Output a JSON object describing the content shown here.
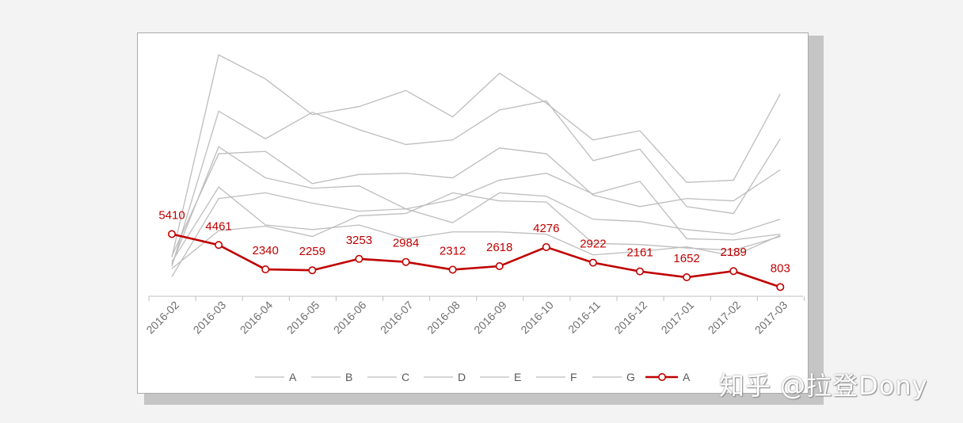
{
  "chart_data": {
    "type": "line",
    "categories": [
      "2016-02",
      "2016-03",
      "2016-04",
      "2016-05",
      "2016-06",
      "2016-07",
      "2016-08",
      "2016-09",
      "2016-10",
      "2016-11",
      "2016-12",
      "2017-01",
      "2017-02",
      "2017-03"
    ],
    "ylim": [
      0,
      21500
    ],
    "grid": false,
    "legend_position": "bottom",
    "background_series": [
      {
        "name": "A",
        "color": "#bdbdbd",
        "values": [
          3400,
          21000,
          18900,
          15800,
          16500,
          17900,
          15600,
          19400,
          16800,
          13600,
          14400,
          9900,
          10100,
          17600
        ]
      },
      {
        "name": "B",
        "color": "#bdbdbd",
        "values": [
          2600,
          16100,
          13700,
          16000,
          14500,
          13200,
          13600,
          16200,
          17000,
          11800,
          12800,
          7800,
          7200,
          13700
        ]
      },
      {
        "name": "C",
        "color": "#bdbdbd",
        "values": [
          3500,
          12400,
          12600,
          9800,
          10600,
          10700,
          10300,
          12900,
          12400,
          8800,
          7800,
          8500,
          8300,
          11000
        ]
      },
      {
        "name": "D",
        "color": "#bdbdbd",
        "values": [
          2800,
          13000,
          10300,
          9400,
          9600,
          7600,
          6400,
          9000,
          8700,
          6700,
          6500,
          5800,
          5400,
          6700
        ]
      },
      {
        "name": "E",
        "color": "#bdbdbd",
        "values": [
          1700,
          8500,
          9000,
          8100,
          7400,
          7600,
          8400,
          10100,
          10700,
          8900,
          10000,
          5000,
          4900,
          5400
        ]
      },
      {
        "name": "F",
        "color": "#bdbdbd",
        "values": [
          2400,
          5700,
          6100,
          5200,
          7000,
          7200,
          9000,
          8300,
          8200,
          4600,
          4500,
          4200,
          4000,
          5200
        ]
      },
      {
        "name": "G",
        "color": "#bdbdbd",
        "values": [
          3000,
          9500,
          6200,
          5800,
          6200,
          5000,
          5600,
          5600,
          5400,
          3600,
          3900,
          4300,
          3500,
          5300
        ]
      }
    ],
    "highlight_series": {
      "name": "A",
      "color": "#c00000",
      "values": [
        5410,
        4461,
        2340,
        2259,
        3253,
        2984,
        2312,
        2618,
        4276,
        2922,
        2161,
        1652,
        2189,
        803
      ],
      "labels": [
        "5410",
        "4461",
        "2340",
        "2259",
        "3253",
        "2984",
        "2312",
        "2618",
        "4276",
        "2922",
        "2161",
        "1652",
        "2189",
        "803"
      ]
    },
    "legend": [
      {
        "label": "A",
        "highlight": false
      },
      {
        "label": "B",
        "highlight": false
      },
      {
        "label": "C",
        "highlight": false
      },
      {
        "label": "D",
        "highlight": false
      },
      {
        "label": "E",
        "highlight": false
      },
      {
        "label": "F",
        "highlight": false
      },
      {
        "label": "G",
        "highlight": false
      },
      {
        "label": "A",
        "highlight": true
      }
    ]
  },
  "watermark": "知乎 @拉登Dony"
}
